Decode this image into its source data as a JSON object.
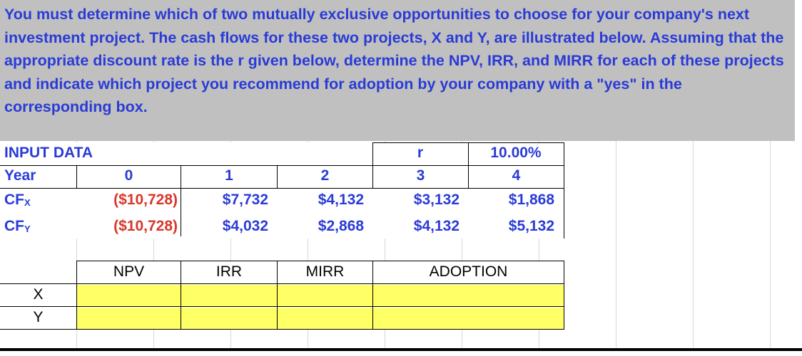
{
  "instructions": "You must determine which of two mutually exclusive opportunities to choose for your company's next investment project.  The cash flows for these two projects, X and Y, are illustrated below.  Assuming that the appropriate discount rate is the r given below, determine the NPV, IRR, and MIRR for each of these projects and indicate which project you recommend for adoption by your company with a \"yes\" in the corresponding box.",
  "input": {
    "title": "INPUT DATA",
    "r_label": "r",
    "r_value": "10.00%",
    "year_label": "Year",
    "years": [
      "0",
      "1",
      "2",
      "3",
      "4"
    ],
    "cfx_label": "CF",
    "cfx_sub": "X",
    "cfx": [
      "($10,728)",
      "$7,732",
      "$4,132",
      "$3,132",
      "$1,868"
    ],
    "cfy_label": "CF",
    "cfy_sub": "Y",
    "cfy": [
      "($10,728)",
      "$4,032",
      "$2,868",
      "$4,132",
      "$5,132"
    ]
  },
  "results": {
    "headers": [
      "NPV",
      "IRR",
      "MIRR",
      "ADOPTION"
    ],
    "rows": [
      "X",
      "Y"
    ]
  },
  "colors": {
    "label_blue": "#2a3bd6",
    "negative_red": "#d8372a",
    "input_yellow": "#ffff66",
    "banner_gray": "#c0c0c0"
  }
}
